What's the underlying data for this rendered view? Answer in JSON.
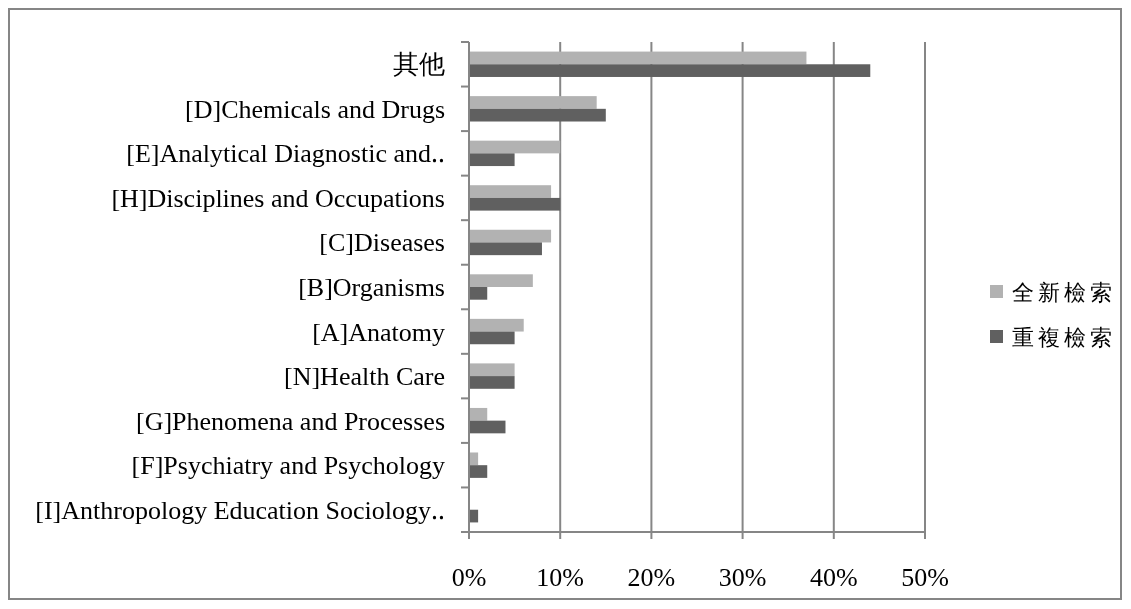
{
  "chart_data": {
    "type": "bar",
    "orientation": "horizontal",
    "categories": [
      "其他",
      "[D]Chemicals and Drugs",
      "[E]Analytical Diagnostic and‥",
      "[H]Disciplines and Occupations",
      "[C]Diseases",
      "[B]Organisms",
      "[A]Anatomy",
      "[N]Health Care",
      "[G]Phenomena and Processes",
      "[F]Psychiatry and Psychology",
      "[I]Anthropology Education Sociology‥"
    ],
    "series": [
      {
        "name": "全新檢索",
        "color": "#b2b2b2",
        "values": [
          37,
          14,
          10,
          9,
          9,
          7,
          6,
          5,
          2,
          1,
          0
        ]
      },
      {
        "name": "重複檢索",
        "color": "#606060",
        "values": [
          44,
          15,
          5,
          10,
          8,
          2,
          5,
          5,
          4,
          2,
          1
        ]
      }
    ],
    "xlim": [
      0,
      50
    ],
    "xticks": [
      {
        "value": 0,
        "label": "0%"
      },
      {
        "value": 10,
        "label": "10%"
      },
      {
        "value": 20,
        "label": "20%"
      },
      {
        "value": 30,
        "label": "30%"
      },
      {
        "value": 40,
        "label": "40%"
      },
      {
        "value": 50,
        "label": "50%"
      }
    ],
    "grid": "x",
    "legend": "right"
  }
}
